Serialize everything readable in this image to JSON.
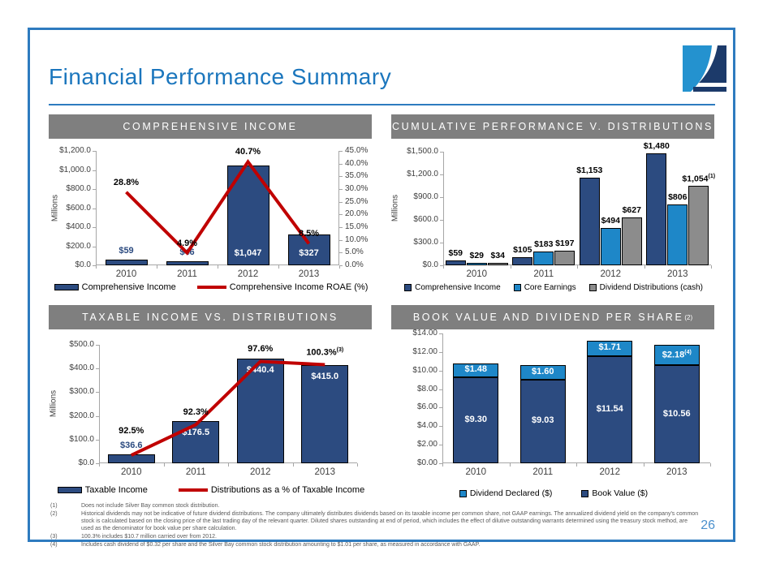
{
  "slide": {
    "title": "Financial Performance Summary",
    "page_number": "26"
  },
  "colors": {
    "navy": "#2c4b80",
    "blue": "#1e87c8",
    "gray": "#8c8c8c",
    "red": "#c00000",
    "header_gray": "#7f7f7f",
    "title_blue": "#1b76bd",
    "border_blue": "#2e7bbf",
    "logo_light_blue": "#2492cf",
    "logo_navy": "#1c3a6a"
  },
  "chart_data": [
    {
      "id": "comprehensive-income",
      "header": "COMPREHENSIVE INCOME",
      "type": "bar-line",
      "categories": [
        "2010",
        "2011",
        "2012",
        "2013"
      ],
      "bars": {
        "name": "Comprehensive Income",
        "color_key": "navy",
        "values": [
          59,
          46,
          1047,
          327
        ],
        "labels": [
          "$59",
          "$46",
          "$1,047",
          "$327"
        ],
        "label_pos": [
          "above",
          "above",
          "inside",
          "inside"
        ]
      },
      "line": {
        "name": "Comprehensive Income ROAE (%)",
        "plot_on": "right-axis",
        "values": [
          28.8,
          4.9,
          40.7,
          8.5
        ],
        "labels": [
          "28.8%",
          "4.9%",
          "40.7%",
          "8.5%"
        ],
        "label_sups": [
          "",
          "",
          "",
          ""
        ]
      },
      "y_left": {
        "min": 0,
        "max": 1200,
        "label": "Millions",
        "ticks": [
          "$0.0",
          "$200.0",
          "$400.0",
          "$600.0",
          "$800.0",
          "$1,000.0",
          "$1,200.0"
        ]
      },
      "y_right": {
        "min": 0,
        "max": 45,
        "ticks": [
          "0.0%",
          "5.0%",
          "10.0%",
          "15.0%",
          "20.0%",
          "25.0%",
          "30.0%",
          "35.0%",
          "40.0%",
          "45.0%"
        ]
      }
    },
    {
      "id": "cumulative-performance-v-distributions",
      "header": "CUMULATIVE PERFORMANCE V. DISTRIBUTIONS",
      "type": "grouped-bar",
      "categories": [
        "2010",
        "2011",
        "2012",
        "2013"
      ],
      "series": [
        {
          "name": "Comprehensive Income",
          "color_key": "navy",
          "values": [
            59,
            105,
            1153,
            1480
          ],
          "labels": [
            "$59",
            "$105",
            "$1,153",
            "$1,480"
          ],
          "label_sups": [
            "",
            "",
            "",
            ""
          ]
        },
        {
          "name": "Core Earnings",
          "color_key": "blue",
          "values": [
            29,
            183,
            494,
            806
          ],
          "labels": [
            "$29",
            "$183",
            "$494",
            "$806"
          ],
          "label_sups": [
            "",
            "",
            "",
            ""
          ]
        },
        {
          "name": "Dividend Distributions (cash)",
          "color_key": "gray",
          "values": [
            34,
            197,
            627,
            1054
          ],
          "labels": [
            "$34",
            "$197",
            "$627",
            "$1,054"
          ],
          "label_sups": [
            "",
            "",
            "",
            "(1)"
          ]
        }
      ],
      "y_left": {
        "min": 0,
        "max": 1500,
        "label": "Millions",
        "ticks": [
          "$0.0",
          "$300.0",
          "$600.0",
          "$900.0",
          "$1,200.0",
          "$1,500.0"
        ]
      }
    },
    {
      "id": "taxable-income-vs-distributions",
      "header": "TAXABLE INCOME VS. DISTRIBUTIONS",
      "type": "bar-line",
      "categories": [
        "2010",
        "2011",
        "2012",
        "2013"
      ],
      "bars": {
        "name": "Taxable Income",
        "color_key": "navy",
        "values": [
          36.6,
          176.5,
          440.4,
          415.0
        ],
        "labels": [
          "$36.6",
          "$176.5",
          "$440.4",
          "$415.0"
        ],
        "label_pos": [
          "above",
          "inside",
          "inside",
          "inside"
        ]
      },
      "line": {
        "name": "Distributions as a % of Taxable Income",
        "plot_on": "percent-of-bars",
        "values": [
          92.5,
          92.3,
          97.6,
          100.3
        ],
        "labels": [
          "92.5%",
          "92.3%",
          "97.6%",
          "100.3%"
        ],
        "label_sups": [
          "",
          "",
          "",
          "(3)"
        ]
      },
      "y_left": {
        "min": 0,
        "max": 500,
        "label": "Millions",
        "ticks": [
          "$0.0",
          "$100.0",
          "$200.0",
          "$300.0",
          "$400.0",
          "$500.0"
        ]
      }
    },
    {
      "id": "book-value-and-dividend-per-share",
      "header": "BOOK VALUE AND DIVIDEND PER SHARE",
      "header_sup": "(2)",
      "type": "stacked-bar",
      "categories": [
        "2010",
        "2011",
        "2012",
        "2013"
      ],
      "series": [
        {
          "name": "Book Value ($)",
          "color_key": "navy",
          "values": [
            9.3,
            9.03,
            11.54,
            10.56
          ],
          "labels": [
            "$9.30",
            "$9.03",
            "$11.54",
            "$10.56"
          ],
          "label_sups": [
            "",
            "",
            "",
            ""
          ]
        },
        {
          "name": "Dividend Declared ($)",
          "color_key": "blue",
          "values": [
            1.48,
            1.6,
            1.71,
            2.18
          ],
          "labels": [
            "$1.48",
            "$1.60",
            "$1.71",
            "$2.18"
          ],
          "label_sups": [
            "",
            "",
            "",
            "(4)"
          ]
        }
      ],
      "legend_order": [
        1,
        0
      ],
      "y_left": {
        "min": 0,
        "max": 14,
        "ticks": [
          "$0.00",
          "$2.00",
          "$4.00",
          "$6.00",
          "$8.00",
          "$10.00",
          "$12.00",
          "$14.00"
        ]
      }
    }
  ],
  "footnotes": [
    {
      "num": "(1)",
      "text": "Does not include Silver Bay common stock distribution."
    },
    {
      "num": "(2)",
      "text": "Historical dividends may not be indicative of future dividend distributions.  The company ultimately distributes dividends based on its taxable income per common share, not GAAP earnings. The annualized dividend yield on the company's common stock is calculated based on the closing price of the last trading day of the relevant quarter.  Diluted shares outstanding at end of period, which includes the effect of dilutive outstanding warrants determined using the treasury stock method, are used as the denominator for book value per share calculation."
    },
    {
      "num": "(3)",
      "text": "100.3% includes $10.7 million carried over from 2012."
    },
    {
      "num": "(4)",
      "text": "Includes cash dividend of $0.32 per share and the Silver Bay common stock distribution amounting to $1.01 per share, as measured in accordance with GAAP."
    }
  ]
}
